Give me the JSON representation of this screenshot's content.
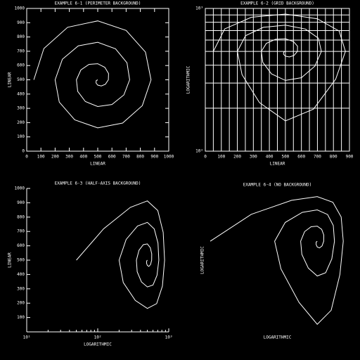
{
  "chart_data": [
    {
      "type": "line",
      "title": "EXAMPLE 6-1 (PERIMETER BACKGROUND)",
      "xlabel": "LINEAR",
      "ylabel": "LINEAR",
      "background": "perimeter",
      "color": "#ffffff",
      "xlim": [
        0,
        1000
      ],
      "ylim": [
        0,
        1000
      ],
      "xlog": false,
      "ylog": false,
      "xticks": [
        0,
        100,
        200,
        300,
        400,
        500,
        600,
        700,
        800,
        900,
        1000
      ],
      "yticks": [
        0,
        100,
        200,
        300,
        400,
        500,
        600,
        700,
        800,
        900,
        1000
      ],
      "x": [
        50,
        121,
        288,
        500,
        700,
        836,
        875,
        814,
        675,
        500,
        338,
        229,
        200,
        251,
        363,
        500,
        625,
        706,
        725,
        684,
        600,
        500,
        413,
        359,
        350,
        381,
        438,
        500,
        550,
        576,
        575,
        554,
        525,
        500,
        488,
        489,
        500
      ],
      "values": [
        500,
        719,
        868,
        913,
        846,
        694,
        500,
        319,
        197,
        163,
        219,
        344,
        500,
        644,
        738,
        763,
        717,
        619,
        500,
        394,
        327,
        313,
        348,
        419,
        500,
        569,
        608,
        613,
        587,
        544,
        500,
        469,
        457,
        463,
        478,
        494,
        500
      ]
    },
    {
      "type": "line",
      "title": "EXAMPLE 6-2 (GRID BACKGROUND)",
      "xlabel": "LINEAR",
      "ylabel": "LOGARITHMIC",
      "background": "grid",
      "color": "#ffffff",
      "xlim": [
        0,
        900
      ],
      "ylim": [
        100,
        1000
      ],
      "xlog": false,
      "ylog": true,
      "xticks": [
        0,
        100,
        200,
        300,
        400,
        500,
        600,
        700,
        800,
        900
      ],
      "yticks": [
        {
          "value": 100,
          "label": "10²"
        },
        {
          "value": 1000,
          "label": "10³"
        }
      ],
      "xminor": [
        50,
        150,
        250,
        350,
        450,
        550,
        650,
        750,
        850
      ],
      "yminor": [
        200,
        300,
        400,
        500,
        600,
        700,
        800,
        900
      ],
      "x": [
        50,
        121,
        288,
        500,
        700,
        836,
        875,
        814,
        675,
        500,
        338,
        229,
        200,
        251,
        363,
        500,
        625,
        706,
        725,
        684,
        600,
        500,
        413,
        359,
        350,
        381,
        438,
        500,
        550,
        576,
        575,
        554,
        525,
        500,
        488,
        489,
        500
      ],
      "values": [
        500,
        719,
        868,
        913,
        846,
        694,
        500,
        319,
        197,
        163,
        219,
        344,
        500,
        644,
        738,
        763,
        717,
        619,
        500,
        394,
        327,
        313,
        348,
        419,
        500,
        569,
        608,
        613,
        587,
        544,
        500,
        469,
        457,
        463,
        478,
        494,
        500
      ]
    },
    {
      "type": "line",
      "title": "EXAMPLE 6-3 (HALF-AXIS BACKGROUND)",
      "xlabel": "LOGARITHMIC",
      "ylabel": "LINEAR",
      "background": "half-axis",
      "color": "#ffffff",
      "xlim": [
        10,
        1000
      ],
      "ylim": [
        0,
        1000
      ],
      "xlog": true,
      "ylog": false,
      "xticks": [
        {
          "value": 10,
          "label": "10¹"
        },
        {
          "value": 100,
          "label": "10²"
        },
        {
          "value": 1000,
          "label": "10³"
        }
      ],
      "yticks": [
        100,
        200,
        300,
        400,
        500,
        600,
        700,
        800,
        900,
        1000
      ],
      "xminor": [
        20,
        30,
        40,
        50,
        60,
        70,
        80,
        90,
        200,
        300,
        400,
        500,
        600,
        700,
        800,
        900
      ],
      "x": [
        50,
        121,
        288,
        500,
        700,
        836,
        875,
        814,
        675,
        500,
        338,
        229,
        200,
        251,
        363,
        500,
        625,
        706,
        725,
        684,
        600,
        500,
        413,
        359,
        350,
        381,
        438,
        500,
        550,
        576,
        575,
        554,
        525,
        500,
        488,
        489,
        500
      ],
      "values": [
        500,
        719,
        868,
        913,
        846,
        694,
        500,
        319,
        197,
        163,
        219,
        344,
        500,
        644,
        738,
        763,
        717,
        619,
        500,
        394,
        327,
        313,
        348,
        419,
        500,
        569,
        608,
        613,
        587,
        544,
        500,
        469,
        457,
        463,
        478,
        494,
        500
      ]
    },
    {
      "type": "line",
      "title": "EXAMPLE 6-4 (NO BACKGROUND)",
      "xlabel": "LOGARITHMIC",
      "ylabel": "LOGARITHMIC",
      "background": "none",
      "color": "#ffffff",
      "xlim": [
        45,
        1000
      ],
      "ylim": [
        150,
        1000
      ],
      "xlog": true,
      "ylog": true,
      "x": [
        50,
        121,
        288,
        500,
        700,
        836,
        875,
        814,
        675,
        500,
        338,
        229,
        200,
        251,
        363,
        500,
        625,
        706,
        725,
        684,
        600,
        500,
        413,
        359,
        350,
        381,
        438,
        500,
        550,
        576,
        575,
        554,
        525,
        500,
        488,
        489,
        500
      ],
      "values": [
        500,
        719,
        868,
        913,
        846,
        694,
        500,
        319,
        197,
        163,
        219,
        344,
        500,
        644,
        738,
        763,
        717,
        619,
        500,
        394,
        327,
        313,
        348,
        419,
        500,
        569,
        608,
        613,
        587,
        544,
        500,
        469,
        457,
        463,
        478,
        494,
        500
      ]
    }
  ]
}
